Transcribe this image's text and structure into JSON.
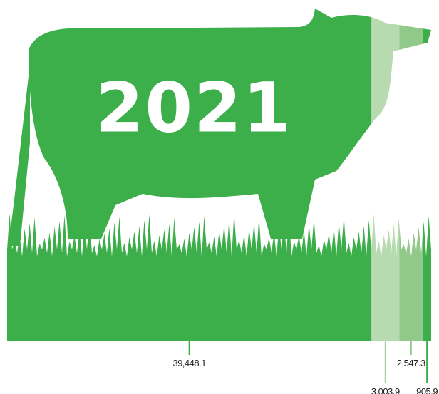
{
  "chart_data": {
    "type": "stacked-bar",
    "title": "2021",
    "values": [
      39448.1,
      3003.9,
      2547.3,
      905.9
    ],
    "value_labels": [
      "39,448.1",
      "3,003.9",
      "2,547.3",
      "905.9"
    ],
    "colors": [
      "#3cae4a",
      "#b7dab0",
      "#90c98a",
      "#3cae4a"
    ]
  }
}
